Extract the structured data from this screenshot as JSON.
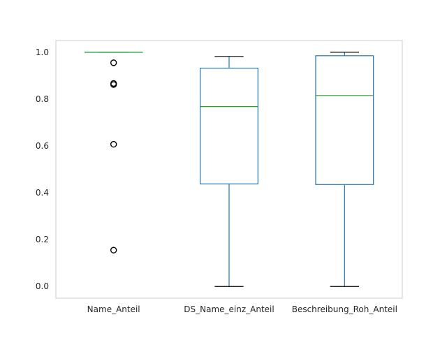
{
  "chart_data": {
    "type": "box",
    "title": "",
    "xlabel": "",
    "ylabel": "",
    "ylim": [
      -0.05,
      1.05
    ],
    "yticks": [
      0.0,
      0.2,
      0.4,
      0.6,
      0.8,
      1.0
    ],
    "ytick_labels": [
      "0.0",
      "0.2",
      "0.4",
      "0.6",
      "0.8",
      "1.0"
    ],
    "grid": false,
    "colors": {
      "box": "#1f77b4",
      "median": "#2ca02c",
      "whisker_cap": "#000000",
      "spine": "#cccccc",
      "text": "#262626"
    },
    "categories": [
      "Name_Anteil",
      "DS_Name_einz_Anteil",
      "Beschreibung_Roh_Anteil"
    ],
    "boxes": [
      {
        "q1": 1.0,
        "median": 1.0,
        "q3": 1.0,
        "whisker_low": 1.0,
        "whisker_high": 1.0,
        "outliers": [
          0.955,
          0.867,
          0.862,
          0.607,
          0.155
        ]
      },
      {
        "q1": 0.438,
        "median": 0.768,
        "q3": 0.932,
        "whisker_low": 0.0,
        "whisker_high": 0.982,
        "outliers": []
      },
      {
        "q1": 0.435,
        "median": 0.815,
        "q3": 0.985,
        "whisker_low": 0.0,
        "whisker_high": 1.0,
        "outliers": []
      }
    ]
  }
}
